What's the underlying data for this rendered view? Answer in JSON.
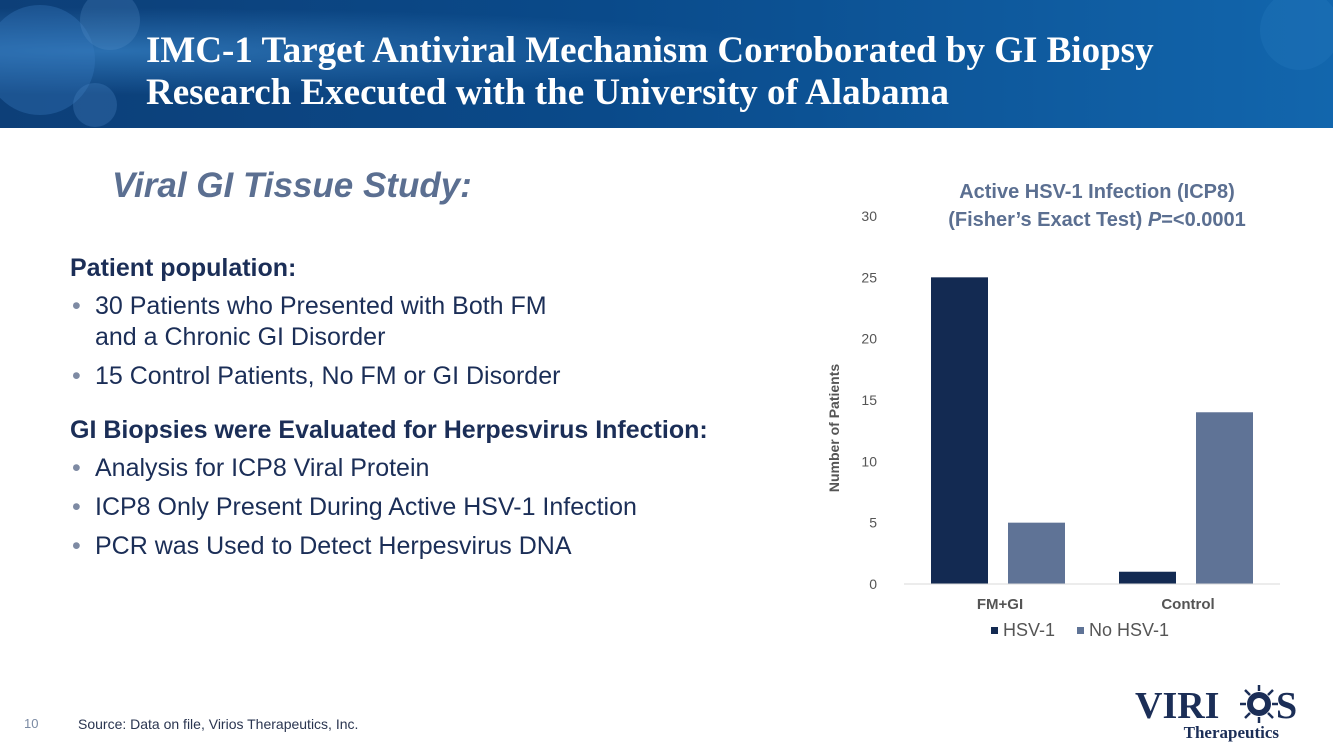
{
  "slide": {
    "title_line1": "IMC-1 Target Antiviral Mechanism Corroborated by GI Biopsy",
    "title_line2": "Research Executed with the University of Alabama",
    "subtitle": "Viral GI Tissue Study:",
    "page_number": "10",
    "source": "Source: Data on file, Virios Therapeutics, Inc."
  },
  "population": {
    "heading": "Patient population:",
    "bullets": [
      "30 Patients who Presented with Both FM",
      "and a Chronic GI Disorder",
      "15 Control Patients, No FM or GI Disorder"
    ]
  },
  "biopsies": {
    "heading": "GI Biopsies were Evaluated for Herpesvirus Infection:",
    "bullets": [
      "Analysis for ICP8 Viral Protein",
      "ICP8 Only Present During Active HSV-1 Infection",
      "PCR was Used to Detect Herpesvirus DNA"
    ]
  },
  "logo": {
    "wordmark_left": "VIRI",
    "wordmark_right": "S",
    "tagline": "Therapeutics"
  },
  "chart_data": {
    "type": "bar",
    "title": "Active HSV-1 Infection (ICP8)",
    "subtitle_prefix": "(Fisher’s Exact Test) ",
    "subtitle_italic": "P",
    "subtitle_suffix": "=<0.0001",
    "categories": [
      "FM+GI",
      "Control"
    ],
    "series": [
      {
        "name": "HSV-1",
        "values": [
          25,
          1
        ],
        "color": "#132a52"
      },
      {
        "name": "No HSV-1",
        "values": [
          5,
          14
        ],
        "color": "#5f7396"
      }
    ],
    "ylabel": "Number of Patients",
    "xlabel": "",
    "ylim": [
      0,
      30
    ],
    "yticks": [
      "0",
      "5",
      "10",
      "15",
      "20",
      "25",
      "30"
    ],
    "legend_position": "bottom",
    "grid": false
  },
  "colors": {
    "header_blue": "#0d3f78",
    "text_navy": "#1b2e57",
    "subtitle_gray_blue": "#5b6f91"
  }
}
